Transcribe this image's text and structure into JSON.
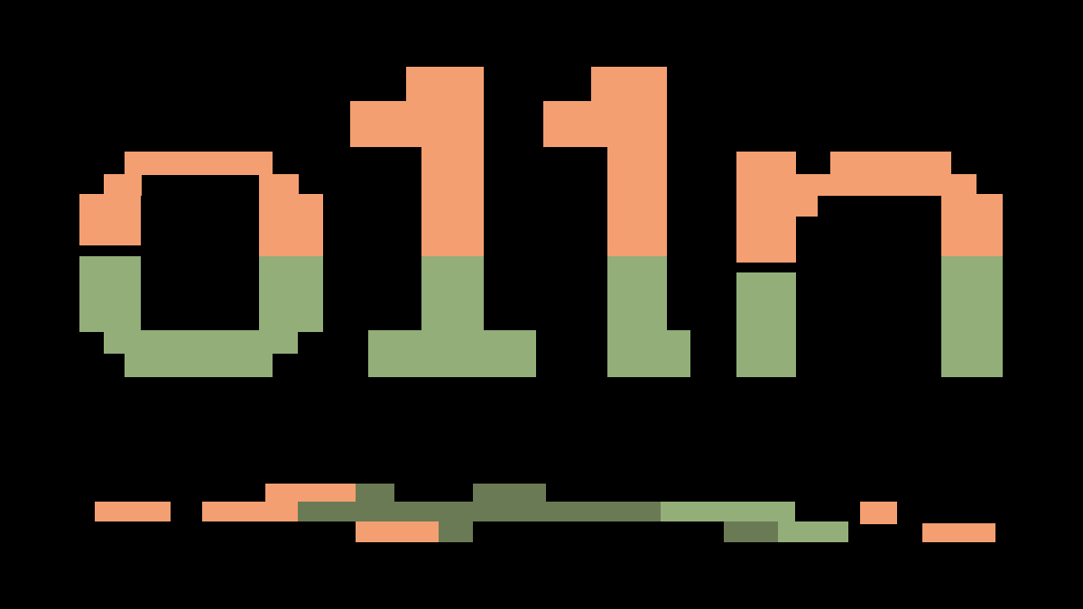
{
  "logo": {
    "text": "o11n",
    "glyphs": [
      "o",
      "1",
      "1",
      "n"
    ]
  },
  "colors": {
    "background": "#000000",
    "orange": "#f49f71",
    "green": "#93ae79",
    "dark_green": "#6a7a55"
  }
}
